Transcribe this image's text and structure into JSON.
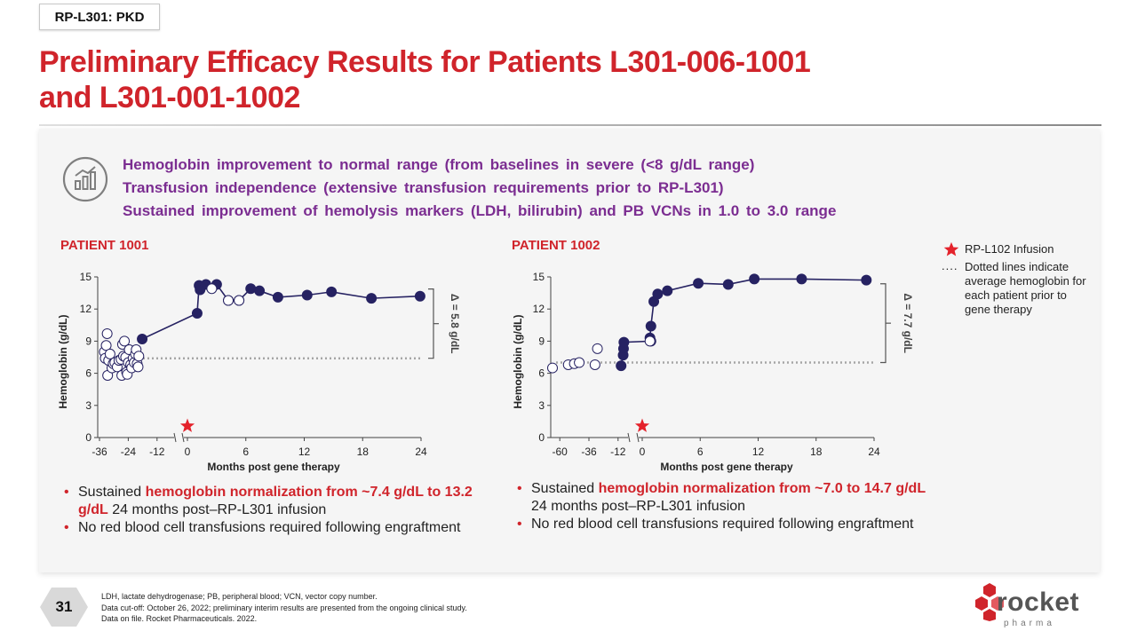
{
  "tag": "RP-L301: PKD",
  "title_line1": "Preliminary Efficacy Results for Patients L301-006-1001",
  "title_line2": "and L301-001-1002",
  "headlines": [
    "Hemoglobin improvement to normal range (from baselines in severe (<8 g/dL range)",
    "Transfusion independence (extensive transfusion requirements prior to RP-L301)",
    "Sustained improvement of hemolysis markers (LDH, bilirubin) and PB VCNs in 1.0 to 3.0 range"
  ],
  "legend": {
    "star_label": "RP-L102 Infusion",
    "dots_symbol": "....",
    "dotted_line_lines": [
      "Dotted lines indicate",
      "average hemoglobin for",
      "each patient prior to",
      "gene therapy"
    ]
  },
  "colors": {
    "accent_red": "#d0242b",
    "headline_purple": "#7b2d91",
    "marker_navy": "#262262",
    "dotted_gray": "#a6a6a6"
  },
  "chart_data": [
    {
      "type": "scatter",
      "title": "PATIENT 1001",
      "xlabel": "Months post gene therapy",
      "ylabel": "Hemoglobin (g/dL)",
      "ylim": [
        0,
        15
      ],
      "yticks": [
        "0",
        "3",
        "6",
        "9",
        "12",
        "15"
      ],
      "pre_xticks": [
        "-36",
        "-24",
        "-12"
      ],
      "post_xticks": [
        "0",
        "6",
        "12",
        "18",
        "24"
      ],
      "pre_range": [
        -36,
        -6
      ],
      "post_range": [
        0,
        24
      ],
      "baseline_avg": 7.4,
      "delta_label": "Δ = 5.8 g/dL",
      "infusion_month": 0,
      "pre_points": [
        [
          -34.0,
          8.0
        ],
        [
          -33.6,
          7.4
        ],
        [
          -33.2,
          8.6
        ],
        [
          -32.8,
          9.7
        ],
        [
          -32.6,
          5.8
        ],
        [
          -32.2,
          7.2
        ],
        [
          -31.6,
          7.8
        ],
        [
          -30.8,
          6.5
        ],
        [
          -30.3,
          6.9
        ],
        [
          -29.6,
          7.0
        ],
        [
          -28.6,
          6.6
        ],
        [
          -27.9,
          7.2
        ],
        [
          -27.0,
          7.3
        ],
        [
          -26.7,
          5.8
        ],
        [
          -26.4,
          8.7
        ],
        [
          -26.0,
          7.6
        ],
        [
          -25.6,
          9.0
        ],
        [
          -25.1,
          7.5
        ],
        [
          -24.7,
          6.1
        ],
        [
          -24.4,
          5.9
        ],
        [
          -24.0,
          7.0
        ],
        [
          -23.6,
          8.2
        ],
        [
          -23.0,
          6.8
        ],
        [
          -22.6,
          6.5
        ],
        [
          -22.0,
          7.4
        ],
        [
          -21.5,
          7.0
        ],
        [
          -21.0,
          7.8
        ],
        [
          -20.7,
          8.2
        ],
        [
          -20.3,
          6.9
        ],
        [
          -19.9,
          6.6
        ],
        [
          -19.6,
          7.6
        ]
      ],
      "transition_point": [
        -18.2,
        9.2
      ],
      "post_points": [
        [
          1.0,
          11.6
        ],
        [
          1.2,
          14.2
        ],
        [
          1.3,
          13.8
        ],
        [
          1.9,
          14.3
        ],
        [
          3.0,
          14.3
        ],
        [
          4.2,
          12.8
        ],
        [
          5.3,
          12.8
        ],
        [
          6.5,
          13.9
        ],
        [
          7.4,
          13.7
        ],
        [
          9.3,
          13.1
        ],
        [
          12.3,
          13.3
        ],
        [
          14.8,
          13.6
        ],
        [
          18.9,
          13.0
        ],
        [
          23.9,
          13.2
        ]
      ],
      "post_open_points": [
        [
          2.5,
          13.9
        ],
        [
          4.2,
          12.8
        ],
        [
          5.3,
          12.8
        ]
      ]
    },
    {
      "type": "scatter",
      "title": "PATIENT 1002",
      "xlabel": "Months post gene therapy",
      "ylabel": "Hemoglobin (g/dL)",
      "ylim": [
        0,
        15
      ],
      "yticks": [
        "0",
        "3",
        "6",
        "9",
        "12",
        "15"
      ],
      "pre_xticks": [
        "-60",
        "-36",
        "-12"
      ],
      "post_xticks": [
        "0",
        "6",
        "12",
        "18",
        "24"
      ],
      "pre_range": [
        -66,
        -6
      ],
      "post_range": [
        0,
        24
      ],
      "baseline_avg": 7.0,
      "delta_label": "Δ = 7.7 g/dL",
      "infusion_month": 0,
      "pre_points": [
        [
          -66,
          6.5
        ],
        [
          -53,
          6.8
        ],
        [
          -48,
          6.9
        ],
        [
          -44,
          7.0
        ],
        [
          -31,
          6.8
        ],
        [
          -29,
          8.3
        ]
      ],
      "transition_point": [
        -9.5,
        6.7
      ],
      "post_points": [
        [
          -7.8,
          7.7
        ],
        [
          -7.5,
          8.3
        ],
        [
          -7.2,
          8.9
        ],
        [
          0.9,
          9.0
        ],
        [
          0.8,
          9.3
        ],
        [
          0.9,
          10.4
        ],
        [
          1.2,
          12.7
        ],
        [
          1.6,
          13.4
        ],
        [
          2.6,
          13.7
        ],
        [
          5.8,
          14.4
        ],
        [
          8.9,
          14.3
        ],
        [
          11.6,
          14.8
        ],
        [
          16.5,
          14.8
        ],
        [
          23.2,
          14.7
        ]
      ],
      "post_open_points": [
        [
          0.8,
          9.0
        ]
      ]
    }
  ],
  "bullets_1001": {
    "b1_pre": "Sustained ",
    "b1_red": "hemoglobin normalization from ~7.4 g/dL to 13.2 g/dL",
    "b1_post": " 24 months post–RP-L301 infusion",
    "b2": "No red blood cell transfusions required following engraftment"
  },
  "bullets_1002": {
    "b1_pre": "Sustained ",
    "b1_red": "hemoglobin normalization from ~7.0 to 14.7 g/dL",
    "b1_post": "24 months post–RP-L301 infusion",
    "b2": "No red blood cell transfusions required following engraftment"
  },
  "page_number": "31",
  "footer_lines": [
    "LDH, lactate dehydrogenase; PB, peripheral blood; VCN, vector copy number.",
    "Data cut-off: October 26, 2022; preliminary interim results are presented from the ongoing clinical study.",
    "Data on file. Rocket Pharmaceuticals. 2022."
  ],
  "logo": {
    "word": "rocket",
    "sub": "pharma"
  }
}
